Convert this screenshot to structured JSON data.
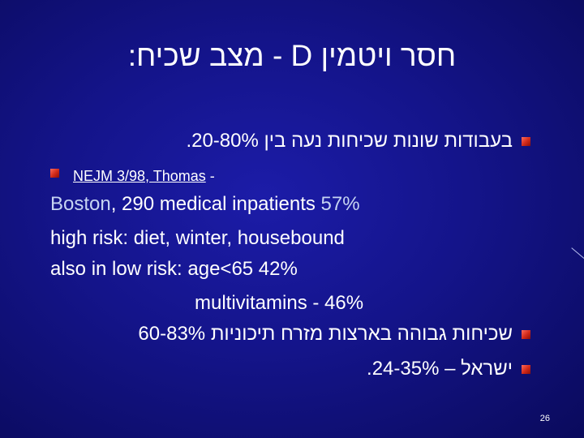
{
  "slide": {
    "title": "חסר ויטמין D - מצב שכיח:",
    "bullet1": "בעבודות שונות שכיחות נעה בין 20-80%.",
    "ref_link": "NEJM 3/98, Thomas",
    "ref_dash": " -",
    "boston_label": "Boston",
    "boston_rest": ", 290 medical inpatients ",
    "boston_pct": "57%",
    "high_risk": "high risk: diet, winter, housebound",
    "low_risk": "also in low risk: age<65 42%",
    "multivitamins": "multivitamins - 46%",
    "bullet3": "שכיחות גבוהה בארצות מזרח תיכוניות 60-83%",
    "bullet4": "ישראל – 24-35%.",
    "slide_number": "26"
  },
  "colors": {
    "background": "#14148a",
    "text": "#ffffff",
    "highlight": "#c6d4f2",
    "bullet": "#d02818"
  }
}
